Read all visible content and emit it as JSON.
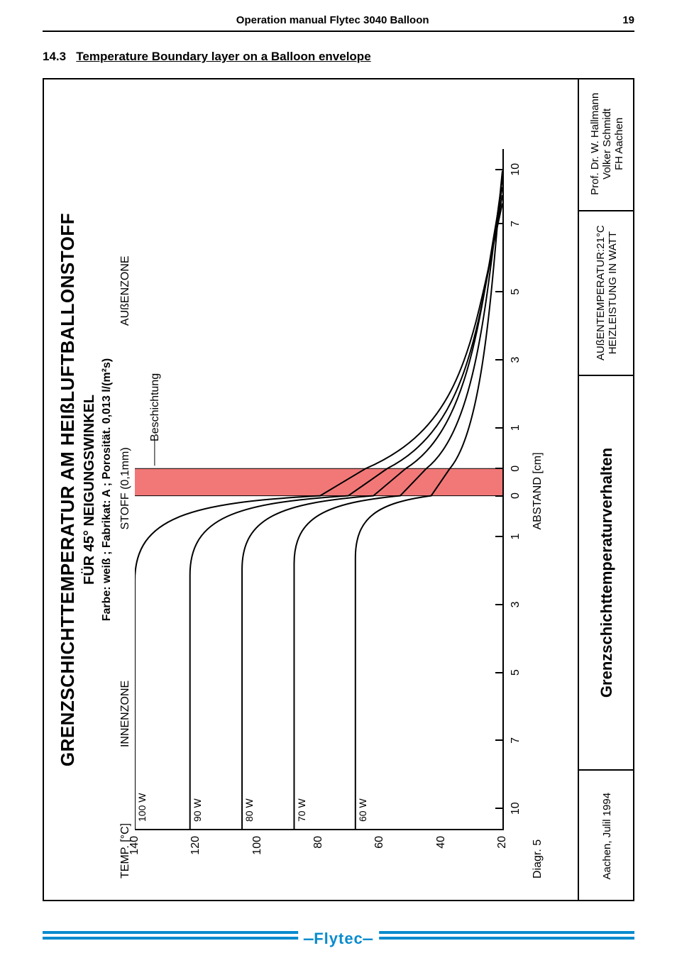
{
  "header": {
    "title": "Operation manual Flytec  3040 Balloon",
    "page_number": "19"
  },
  "section": {
    "number": "14.3",
    "title": "Temperature Boundary layer on a Balloon envelope"
  },
  "chart": {
    "type": "line",
    "title_line1": "GRENZSCHICHTTEMPERATUR AM HEIßLUFTBALLONSTOFF",
    "title_line2": "FÜR 45° NEIGUNGSWINKEL",
    "title_line3": "Farbe: weiß ; Fabrikat: A ; Porosität. 0,013 l/(m²s)",
    "y_axis": {
      "label": "TEMP. [°C]",
      "min": 20,
      "max": 140,
      "ticks": [
        20,
        40,
        60,
        80,
        100,
        120,
        140
      ]
    },
    "x_axis": {
      "label": "ABSTAND [cm]",
      "diagram_label": "Diagr. 5",
      "ticks": [
        10,
        7,
        5,
        3,
        1,
        0,
        0,
        1,
        3,
        5,
        7,
        10
      ],
      "tick_positions_pct": [
        3,
        13,
        23,
        33,
        43,
        49,
        53,
        59,
        69,
        79,
        89,
        97
      ]
    },
    "zones": {
      "inner": "INNENZONE",
      "outer": "AUßENZONE",
      "fabric": "STOFF (0,1mm)",
      "coating": "Beschichtung"
    },
    "coating_band": {
      "left_pct": 49,
      "width_pct": 4,
      "color": "#f27878"
    },
    "series": [
      {
        "label": "100 W",
        "inner_temp": 140,
        "outer_plateau": 30
      },
      {
        "label": "90 W",
        "inner_temp": 122,
        "outer_plateau": 28
      },
      {
        "label": "80 W",
        "inner_temp": 105,
        "outer_plateau": 27
      },
      {
        "label": "70 W",
        "inner_temp": 88,
        "outer_plateau": 25
      },
      {
        "label": "60 W",
        "inner_temp": 68,
        "outer_plateau": 23
      }
    ],
    "styling": {
      "background_color": "#ffffff",
      "line_color": "#000000",
      "line_width": 2,
      "title_fontsize": 26,
      "subtitle_fontsize": 20,
      "label_fontsize": 16
    },
    "footer": {
      "cell1": "Aachen, Julil 1994",
      "cell2": "Grenzschichttemperaturverhalten",
      "cell3_line1": "AUßENTEMPERATUR:21°C",
      "cell3_line2": "HEIZLEISTUNG IN WATT",
      "cell4_line1": "Prof. Dr. W. Hallmann",
      "cell4_line2": "Volker Schmidt",
      "cell4_line3": "FH Aachen"
    }
  },
  "logo": "Flytec"
}
